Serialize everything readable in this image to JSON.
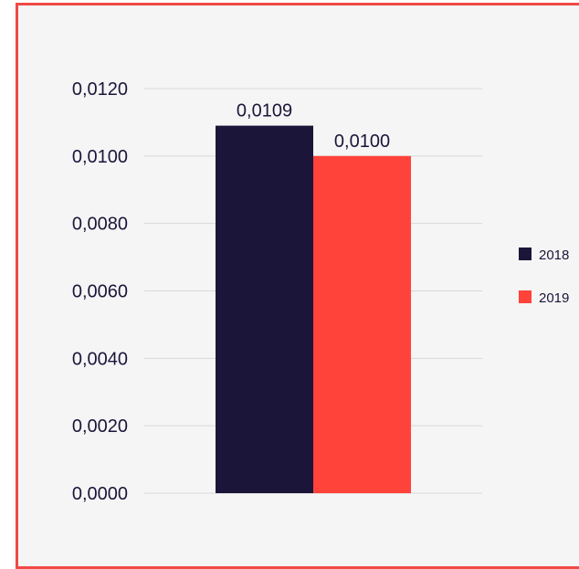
{
  "chart_data": {
    "type": "bar",
    "categories": [
      ""
    ],
    "series": [
      {
        "name": "2018",
        "values": [
          0.0109
        ],
        "color": "#1b1539"
      },
      {
        "name": "2019",
        "values": [
          0.01
        ],
        "color": "#ff433a"
      }
    ],
    "data_labels": [
      "0,0109",
      "0,0100"
    ],
    "ylim": [
      0,
      0.012
    ],
    "y_ticks": [
      0,
      0.002,
      0.004,
      0.006,
      0.008,
      0.01,
      0.012
    ],
    "y_tick_labels": [
      "0,0000",
      "0,0020",
      "0,0040",
      "0,0060",
      "0,0080",
      "0,0100",
      "0,0120"
    ],
    "grid": true,
    "legend_position": "right",
    "title": "",
    "xlabel": "",
    "ylabel": ""
  },
  "colors": {
    "frame_border": "#f04a45",
    "background": "#f5f5f5",
    "gridline": "#d9d9d9",
    "text": "#1b1539"
  }
}
